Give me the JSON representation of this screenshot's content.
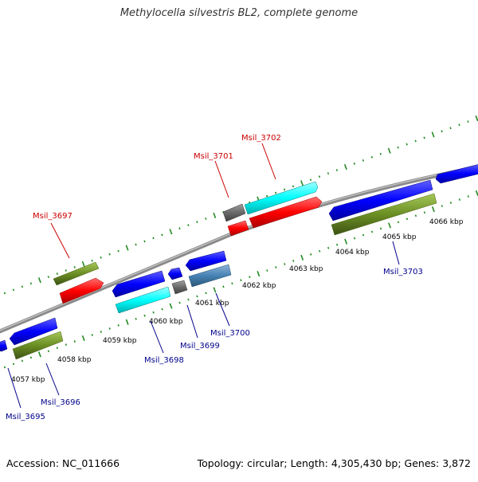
{
  "title": "Methylocella silvestris BL2, complete genome",
  "footer": {
    "accession": "Accession: NC_011666",
    "summary": "Topology: circular; Length: 4,305,430 bp; Genes: 3,872"
  },
  "colors": {
    "backbone": "#8a8a8a",
    "tick": "#228b22",
    "forward_label": "#cc0000",
    "reverse_label": "#00008b",
    "olive": "#6b8e23",
    "red": "#ff0000",
    "blue": "#0000ff",
    "cyan": "#00ffff",
    "gray": "#696969",
    "steelblue": "#4682b4"
  },
  "kbp_ticks": [
    "4057 kbp",
    "4058 kbp",
    "4059 kbp",
    "4060 kbp",
    "4061 kbp",
    "4062 kbp",
    "4063 kbp",
    "4064 kbp",
    "4065 kbp",
    "4066 kbp"
  ],
  "labels": {
    "msil_3695": "Msil_3695",
    "msil_3696": "Msil_3696",
    "msil_3697": "Msil_3697",
    "msil_3698": "Msil_3698",
    "msil_3699": "Msil_3699",
    "msil_3700": "Msil_3700",
    "msil_3701": "Msil_3701",
    "msil_3702": "Msil_3702",
    "msil_3703": "Msil_3703"
  }
}
